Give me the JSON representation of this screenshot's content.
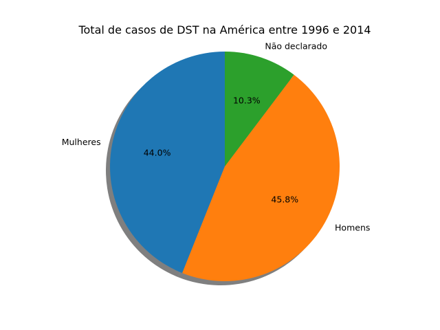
{
  "chart_data": {
    "type": "pie",
    "title": "Total de casos de DST na América entre 1996 e 2014",
    "categories": [
      "Mulheres",
      "Homens",
      "Não declarado"
    ],
    "values": [
      44.0,
      45.8,
      10.3
    ],
    "labels_pct": [
      "44.0%",
      "45.8%",
      "10.3%"
    ],
    "colors": [
      "#1f77b4",
      "#ff7f0e",
      "#2ca02c"
    ],
    "start_angle_deg": 90,
    "direction": "counterclockwise",
    "shadow": true
  }
}
